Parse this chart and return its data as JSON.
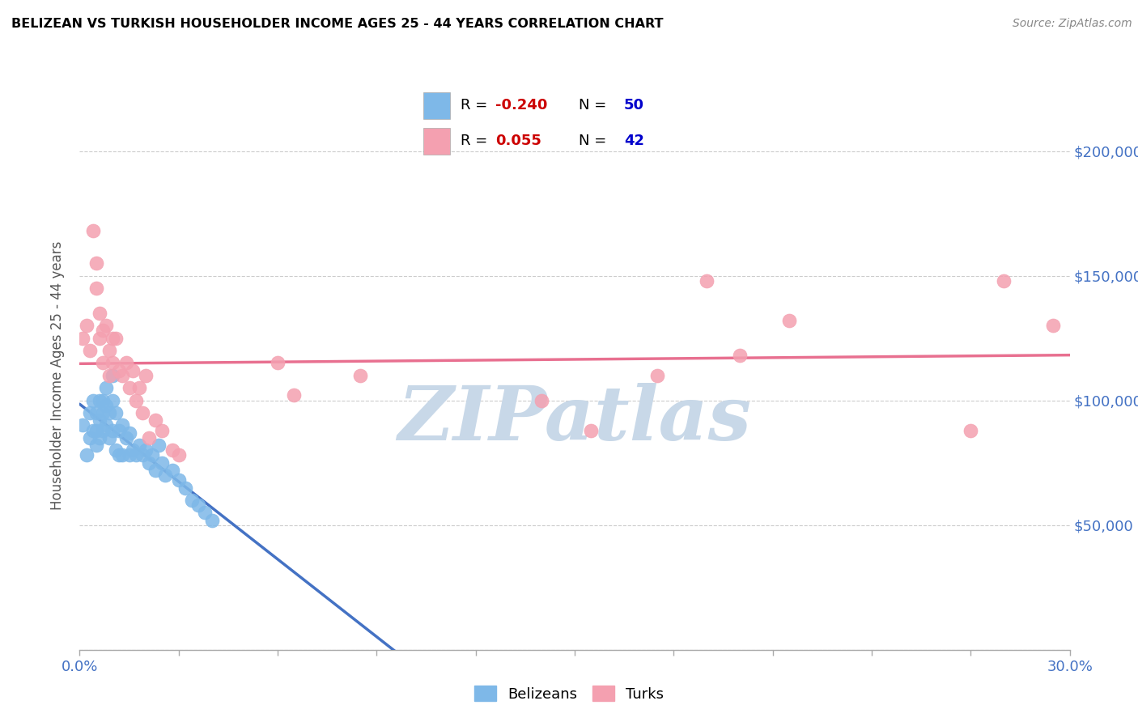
{
  "title": "BELIZEAN VS TURKISH HOUSEHOLDER INCOME AGES 25 - 44 YEARS CORRELATION CHART",
  "source": "Source: ZipAtlas.com",
  "ylabel": "Householder Income Ages 25 - 44 years",
  "xlim": [
    0.0,
    0.3
  ],
  "ylim": [
    0,
    220000
  ],
  "xticks": [
    0.0,
    0.03,
    0.06,
    0.09,
    0.12,
    0.15,
    0.18,
    0.21,
    0.24,
    0.27,
    0.3
  ],
  "ytick_values": [
    0,
    50000,
    100000,
    150000,
    200000
  ],
  "ytick_labels": [
    "",
    "$50,000",
    "$100,000",
    "$150,000",
    "$200,000"
  ],
  "belizean_color": "#7eb8e8",
  "turkish_color": "#f4a0b0",
  "belizean_line_color": "#4472c4",
  "turkish_line_color": "#e87090",
  "belizean_R": -0.24,
  "belizean_N": 50,
  "turkish_R": 0.055,
  "turkish_N": 42,
  "legend_R_color": "#cc0000",
  "legend_N_color": "#0000cc",
  "watermark": "ZIPatlas",
  "watermark_color": "#c8d8e8",
  "belizean_points_x": [
    0.001,
    0.002,
    0.003,
    0.003,
    0.004,
    0.004,
    0.005,
    0.005,
    0.005,
    0.006,
    0.006,
    0.006,
    0.007,
    0.007,
    0.007,
    0.008,
    0.008,
    0.008,
    0.009,
    0.009,
    0.01,
    0.01,
    0.01,
    0.011,
    0.011,
    0.012,
    0.012,
    0.013,
    0.013,
    0.014,
    0.015,
    0.015,
    0.016,
    0.017,
    0.018,
    0.019,
    0.02,
    0.021,
    0.022,
    0.023,
    0.024,
    0.025,
    0.026,
    0.028,
    0.03,
    0.032,
    0.034,
    0.036,
    0.038,
    0.04
  ],
  "belizean_points_y": [
    90000,
    78000,
    95000,
    85000,
    100000,
    88000,
    95000,
    88000,
    82000,
    100000,
    92000,
    85000,
    100000,
    95000,
    88000,
    105000,
    98000,
    90000,
    95000,
    85000,
    110000,
    100000,
    88000,
    95000,
    80000,
    88000,
    78000,
    90000,
    78000,
    85000,
    87000,
    78000,
    80000,
    78000,
    82000,
    78000,
    80000,
    75000,
    78000,
    72000,
    82000,
    75000,
    70000,
    72000,
    68000,
    65000,
    60000,
    58000,
    55000,
    52000
  ],
  "turkish_points_x": [
    0.001,
    0.002,
    0.003,
    0.004,
    0.005,
    0.005,
    0.006,
    0.006,
    0.007,
    0.007,
    0.008,
    0.009,
    0.009,
    0.01,
    0.01,
    0.011,
    0.012,
    0.013,
    0.014,
    0.015,
    0.016,
    0.017,
    0.018,
    0.019,
    0.02,
    0.021,
    0.023,
    0.025,
    0.028,
    0.03,
    0.06,
    0.065,
    0.085,
    0.14,
    0.155,
    0.175,
    0.19,
    0.2,
    0.215,
    0.27,
    0.28,
    0.295
  ],
  "turkish_points_y": [
    125000,
    130000,
    120000,
    168000,
    155000,
    145000,
    135000,
    125000,
    128000,
    115000,
    130000,
    110000,
    120000,
    125000,
    115000,
    125000,
    112000,
    110000,
    115000,
    105000,
    112000,
    100000,
    105000,
    95000,
    110000,
    85000,
    92000,
    88000,
    80000,
    78000,
    115000,
    102000,
    110000,
    100000,
    88000,
    110000,
    148000,
    118000,
    132000,
    88000,
    148000,
    130000
  ],
  "solid_line_end_x": 0.2,
  "grid_color": "#cccccc",
  "spine_color": "#aaaaaa"
}
